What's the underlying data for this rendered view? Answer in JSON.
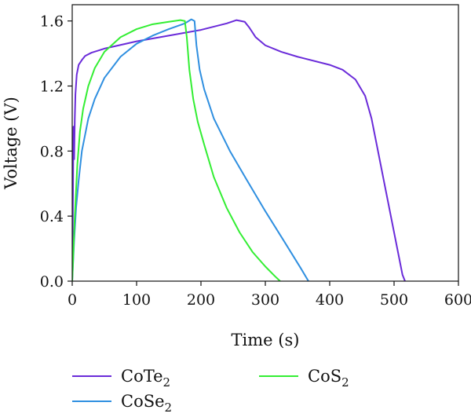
{
  "chart_data": {
    "type": "line",
    "xlabel": "Time (s)",
    "ylabel": "Voltage (V)",
    "xlim": [
      0,
      600
    ],
    "ylim": [
      0,
      1.7
    ],
    "xticks": [
      0,
      100,
      200,
      300,
      400,
      500,
      600
    ],
    "yticks": [
      0.0,
      0.4,
      0.8,
      1.2,
      1.6
    ],
    "xtick_labels": [
      "0",
      "100",
      "200",
      "300",
      "400",
      "500",
      "600"
    ],
    "ytick_labels": [
      "0.0",
      "0.4",
      "0.8",
      "1.2",
      "1.6"
    ],
    "grid": false,
    "legend_position": "bottom",
    "series": [
      {
        "name": "CoTe",
        "name_subscript": "2",
        "color": "#6a2bd9",
        "points": [
          [
            0,
            0.0
          ],
          [
            1,
            0.45
          ],
          [
            2,
            0.95
          ],
          [
            3,
            0.75
          ],
          [
            4,
            1.0
          ],
          [
            5,
            1.15
          ],
          [
            7,
            1.27
          ],
          [
            10,
            1.33
          ],
          [
            15,
            1.36
          ],
          [
            20,
            1.385
          ],
          [
            30,
            1.405
          ],
          [
            50,
            1.43
          ],
          [
            100,
            1.475
          ],
          [
            150,
            1.51
          ],
          [
            200,
            1.545
          ],
          [
            240,
            1.585
          ],
          [
            255,
            1.605
          ],
          [
            262,
            1.6
          ],
          [
            268,
            1.595
          ],
          [
            275,
            1.56
          ],
          [
            285,
            1.5
          ],
          [
            300,
            1.45
          ],
          [
            325,
            1.41
          ],
          [
            350,
            1.38
          ],
          [
            400,
            1.33
          ],
          [
            420,
            1.3
          ],
          [
            440,
            1.24
          ],
          [
            455,
            1.14
          ],
          [
            465,
            1.0
          ],
          [
            475,
            0.8
          ],
          [
            485,
            0.6
          ],
          [
            495,
            0.4
          ],
          [
            505,
            0.2
          ],
          [
            513,
            0.04
          ],
          [
            517,
            0.0
          ]
        ]
      },
      {
        "name": "CoSe",
        "name_subscript": "2",
        "color": "#2f8fe0",
        "points": [
          [
            0,
            0.0
          ],
          [
            3,
            0.25
          ],
          [
            6,
            0.45
          ],
          [
            10,
            0.62
          ],
          [
            15,
            0.8
          ],
          [
            25,
            1.0
          ],
          [
            35,
            1.12
          ],
          [
            50,
            1.25
          ],
          [
            75,
            1.38
          ],
          [
            100,
            1.46
          ],
          [
            125,
            1.51
          ],
          [
            150,
            1.55
          ],
          [
            175,
            1.585
          ],
          [
            185,
            1.61
          ],
          [
            190,
            1.6
          ],
          [
            193,
            1.45
          ],
          [
            198,
            1.3
          ],
          [
            205,
            1.18
          ],
          [
            220,
            1.0
          ],
          [
            245,
            0.8
          ],
          [
            270,
            0.63
          ],
          [
            300,
            0.43
          ],
          [
            330,
            0.24
          ],
          [
            355,
            0.08
          ],
          [
            367,
            0.0
          ]
        ]
      },
      {
        "name": "CoS",
        "name_subscript": "2",
        "color": "#33ee33",
        "points": [
          [
            0,
            0.0
          ],
          [
            4,
            0.4
          ],
          [
            8,
            0.72
          ],
          [
            12,
            0.92
          ],
          [
            17,
            1.06
          ],
          [
            25,
            1.2
          ],
          [
            35,
            1.31
          ],
          [
            50,
            1.41
          ],
          [
            75,
            1.5
          ],
          [
            100,
            1.55
          ],
          [
            125,
            1.58
          ],
          [
            150,
            1.595
          ],
          [
            168,
            1.605
          ],
          [
            175,
            1.6
          ],
          [
            178,
            1.5
          ],
          [
            182,
            1.3
          ],
          [
            188,
            1.12
          ],
          [
            195,
            0.98
          ],
          [
            205,
            0.84
          ],
          [
            220,
            0.64
          ],
          [
            240,
            0.45
          ],
          [
            260,
            0.3
          ],
          [
            280,
            0.18
          ],
          [
            300,
            0.09
          ],
          [
            315,
            0.03
          ],
          [
            323,
            0.0
          ]
        ]
      }
    ]
  }
}
